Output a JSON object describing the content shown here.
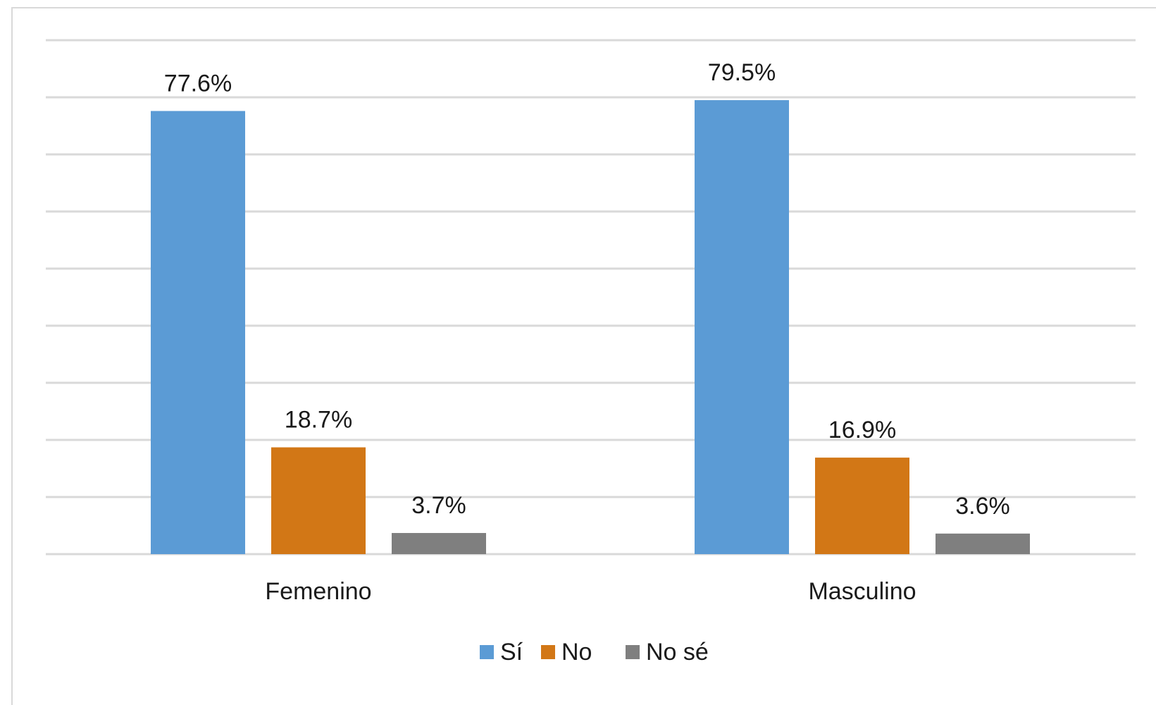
{
  "chart_data": {
    "type": "bar",
    "categories": [
      "Femenino",
      "Masculino"
    ],
    "series": [
      {
        "name": "Sí",
        "values": [
          77.6,
          79.5
        ],
        "labels": [
          "77.6%",
          "79.5%"
        ],
        "color": "#5b9bd5"
      },
      {
        "name": "No",
        "values": [
          18.7,
          16.9
        ],
        "labels": [
          "18.7%",
          "16.9%"
        ],
        "color": "#d27716"
      },
      {
        "name": "No sé",
        "values": [
          3.7,
          3.6
        ],
        "labels": [
          "3.7%",
          "3.6%"
        ],
        "color": "#7f7f7f"
      }
    ],
    "ylim": [
      0,
      90
    ],
    "grid": true,
    "gridline_step": 10,
    "legend_position": "bottom",
    "title": "",
    "xlabel": "",
    "ylabel": ""
  }
}
